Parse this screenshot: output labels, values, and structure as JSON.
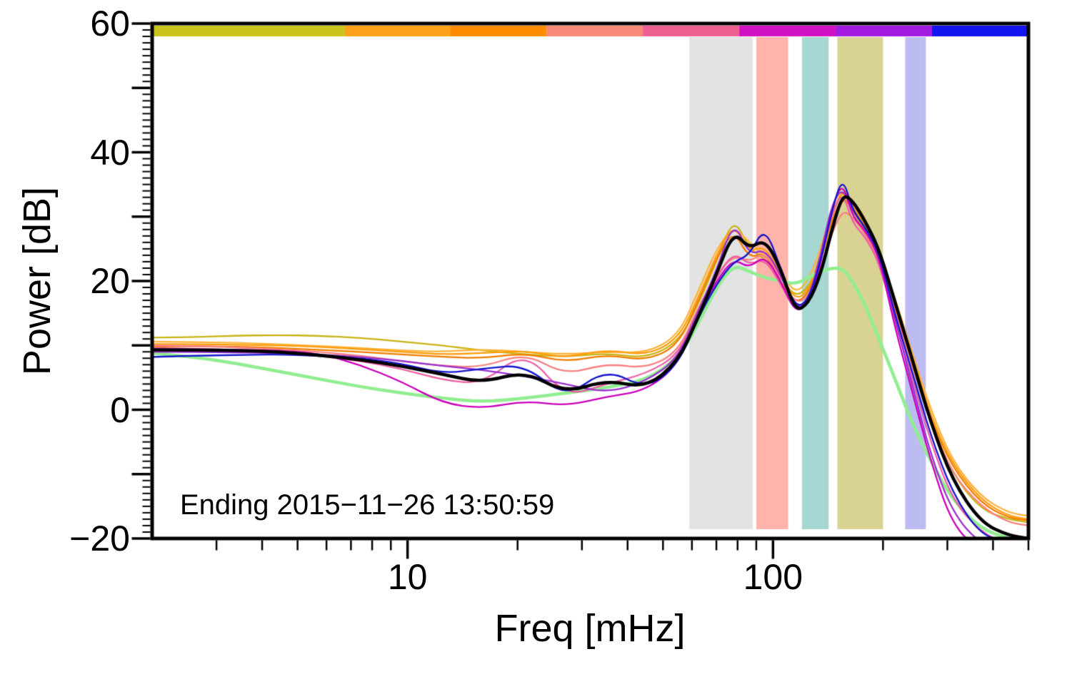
{
  "chart_data": {
    "type": "line",
    "xlabel": "Freq [mHz]",
    "ylabel": "Power [dB]",
    "annotation": "Ending 2015−11−26 13:50:59",
    "x_scale": "log",
    "xlim": [
      2,
      500
    ],
    "ylim": [
      -20,
      60
    ],
    "grid": false,
    "legend": "none",
    "y_ticks_major": [
      {
        "value": 60,
        "label": "60"
      },
      {
        "value": 40,
        "label": "40"
      },
      {
        "value": 20,
        "label": "20"
      },
      {
        "value": 0,
        "label": "0"
      },
      {
        "value": -20,
        "label": "−20"
      }
    ],
    "x_ticks_major": [
      {
        "value": 10,
        "label": "10"
      },
      {
        "value": 100,
        "label": "100"
      }
    ],
    "x_ticks_minor": [
      3,
      4,
      5,
      6,
      7,
      8,
      9,
      20,
      30,
      40,
      50,
      60,
      70,
      80,
      90,
      200,
      300,
      400,
      500
    ],
    "top_strip": [
      {
        "color": "#c9c41c",
        "from": 0.0,
        "to": 0.22
      },
      {
        "color": "#ffa01a",
        "from": 0.22,
        "to": 0.34
      },
      {
        "color": "#ff8c00",
        "from": 0.34,
        "to": 0.45
      },
      {
        "color": "#fa8878",
        "from": 0.45,
        "to": 0.56
      },
      {
        "color": "#ee5f92",
        "from": 0.56,
        "to": 0.67
      },
      {
        "color": "#d012c4",
        "from": 0.67,
        "to": 0.78
      },
      {
        "color": "#a41ae0",
        "from": 0.78,
        "to": 0.89
      },
      {
        "color": "#1414f0",
        "from": 0.89,
        "to": 1.0
      }
    ],
    "bands": [
      {
        "name": "band-gray",
        "from": 59,
        "to": 88,
        "color": "#e3e3e3"
      },
      {
        "name": "band-salmon",
        "from": 90,
        "to": 110,
        "color": "#ffb3ab"
      },
      {
        "name": "band-teal",
        "from": 120,
        "to": 142,
        "color": "#a6d7d3"
      },
      {
        "name": "band-olive",
        "from": 150,
        "to": 200,
        "color": "#d8d393"
      },
      {
        "name": "band-lavender",
        "from": 230,
        "to": 262,
        "color": "#bcbcf2"
      }
    ],
    "x": [
      2,
      2.6,
      3.4,
      4.4,
      5.7,
      7.4,
      9.6,
      12.5,
      16,
      21,
      27,
      35,
      45,
      55,
      62,
      70,
      78,
      86,
      95,
      105,
      115,
      125,
      135,
      145,
      155,
      165,
      178,
      195,
      215,
      240,
      270,
      310,
      370,
      440,
      500
    ],
    "series": [
      {
        "name": "segment-yellow",
        "color": "#c8b414",
        "width": 2.3,
        "values": [
          11.2,
          11.3,
          11.5,
          11.6,
          11.5,
          11.2,
          10.6,
          10.0,
          9.2,
          8.6,
          8.2,
          8.8,
          8.0,
          10.5,
          16,
          23,
          30,
          25,
          23.5,
          20.5,
          17.5,
          19,
          23,
          29,
          33.5,
          31,
          28,
          23.5,
          15.5,
          7,
          -2,
          -10,
          -15.5,
          -17,
          -17.5
        ]
      },
      {
        "name": "segment-orange-deep",
        "color": "#f07d00",
        "width": 2.3,
        "values": [
          9.8,
          9.9,
          9.8,
          9.6,
          9.3,
          9.0,
          8.6,
          8.2,
          8.0,
          8.8,
          7.4,
          8.6,
          7.6,
          10,
          16.5,
          23.5,
          28,
          23.5,
          24.5,
          20,
          16.5,
          18,
          23.5,
          29.5,
          33,
          31.5,
          28.5,
          24,
          16,
          7.5,
          -1.5,
          -9,
          -14.5,
          -16.8,
          -17.2
        ]
      },
      {
        "name": "segment-orange-light",
        "color": "#ffb338",
        "width": 2.3,
        "values": [
          10.6,
          10.5,
          10.4,
          10.2,
          9.9,
          9.6,
          9.2,
          9.0,
          9.4,
          9.0,
          8.6,
          9.0,
          8.8,
          11.5,
          18,
          25,
          28.5,
          26,
          24,
          21.5,
          18,
          20,
          25,
          31,
          33.8,
          32.5,
          30,
          25,
          17.5,
          9,
          0,
          -8,
          -13.5,
          -16,
          -16.5
        ]
      },
      {
        "name": "segment-orange",
        "color": "#ff9d0e",
        "width": 2.3,
        "values": [
          10.2,
          10.2,
          10.1,
          10.0,
          9.8,
          9.4,
          9.0,
          8.6,
          8.8,
          9.2,
          8.0,
          9.4,
          8.4,
          11,
          17,
          24,
          29,
          24.5,
          25.5,
          21,
          17,
          18.5,
          24,
          30,
          34.5,
          32,
          29,
          24.5,
          16.5,
          8.5,
          -1,
          -8.5,
          -14,
          -16.5,
          -17
        ]
      },
      {
        "name": "segment-salmon",
        "color": "#fa8080",
        "width": 2.3,
        "values": [
          10.0,
          9.9,
          9.7,
          9.4,
          9.0,
          8.4,
          7.6,
          6.8,
          6.6,
          8.8,
          5.4,
          7.2,
          6.4,
          9,
          15.5,
          21,
          24,
          23,
          24.5,
          20.5,
          16.5,
          17.5,
          22,
          27.5,
          31,
          30,
          27.5,
          23.5,
          15.5,
          7,
          -2,
          -10,
          -15,
          -17.5,
          -18
        ]
      },
      {
        "name": "segment-green",
        "color": "#90ee90",
        "width": 4.5,
        "values": [
          8.8,
          8.2,
          7.2,
          6.0,
          4.8,
          3.6,
          2.6,
          1.8,
          1.2,
          1.8,
          2.6,
          3.4,
          4.6,
          8,
          13,
          19,
          22.5,
          21.5,
          20.5,
          20,
          19.5,
          20.5,
          21.5,
          22,
          22,
          20,
          16.5,
          11,
          5,
          -2,
          -8,
          -14,
          -18.5,
          -20,
          -20.5
        ]
      },
      {
        "name": "segment-pink",
        "color": "#ee5fa5",
        "width": 2.3,
        "values": [
          9.6,
          9.5,
          9.3,
          9.0,
          8.4,
          7.6,
          6.4,
          4.6,
          4.0,
          9.2,
          2.0,
          4.0,
          5.6,
          8.5,
          15,
          20.5,
          24.5,
          22.5,
          23.5,
          19.5,
          15.5,
          17,
          23,
          30.5,
          34,
          29,
          27,
          23,
          14,
          5,
          -5,
          -14,
          -19,
          -21,
          -21
        ]
      },
      {
        "name": "segment-purple",
        "color": "#9b30d0",
        "width": 2.3,
        "values": [
          9.0,
          9.0,
          8.9,
          8.8,
          8.6,
          8.2,
          7.6,
          6.8,
          6.2,
          5.2,
          4.0,
          2.6,
          4.4,
          8,
          15,
          21.5,
          29.5,
          24,
          25,
          21,
          15.5,
          17,
          24,
          32,
          34.5,
          31,
          28.5,
          24,
          14.5,
          4,
          -7,
          -16,
          -21,
          -21.5,
          -21.5
        ]
      },
      {
        "name": "segment-magenta",
        "color": "#cc00bb",
        "width": 2.3,
        "values": [
          9.4,
          9.4,
          9.3,
          9.2,
          8.8,
          7.0,
          4.4,
          1.0,
          0.2,
          1.4,
          0.6,
          2.0,
          3.0,
          7,
          14.5,
          20,
          23.5,
          22,
          24,
          20,
          15,
          16.5,
          22.5,
          31.5,
          35.5,
          30,
          28,
          24,
          13,
          3,
          -8,
          -18,
          -22,
          -22,
          -22
        ]
      },
      {
        "name": "segment-blue",
        "color": "#1515cc",
        "width": 2.3,
        "values": [
          8.2,
          8.4,
          8.5,
          8.6,
          8.4,
          8.0,
          7.2,
          5.6,
          6.4,
          7.0,
          1.8,
          6.4,
          3.2,
          7,
          14,
          19.5,
          23,
          24,
          28.5,
          22,
          15.8,
          17,
          23,
          31,
          36.3,
          31,
          28.5,
          24.5,
          15,
          6,
          -4,
          -13,
          -19.5,
          -20.5,
          -20.5
        ]
      },
      {
        "name": "mean-spectrum",
        "color": "#000000",
        "width": 4.5,
        "values": [
          9.3,
          9.3,
          9.2,
          9.0,
          8.5,
          7.8,
          6.8,
          5.5,
          4.2,
          6.0,
          2.6,
          4.6,
          3.4,
          7.5,
          14,
          21,
          27.8,
          25.0,
          26.5,
          22.0,
          15.2,
          16.5,
          21,
          28,
          33.5,
          32.5,
          29.5,
          25,
          17,
          8,
          -2,
          -11,
          -17.5,
          -19.5,
          -20
        ]
      }
    ]
  }
}
